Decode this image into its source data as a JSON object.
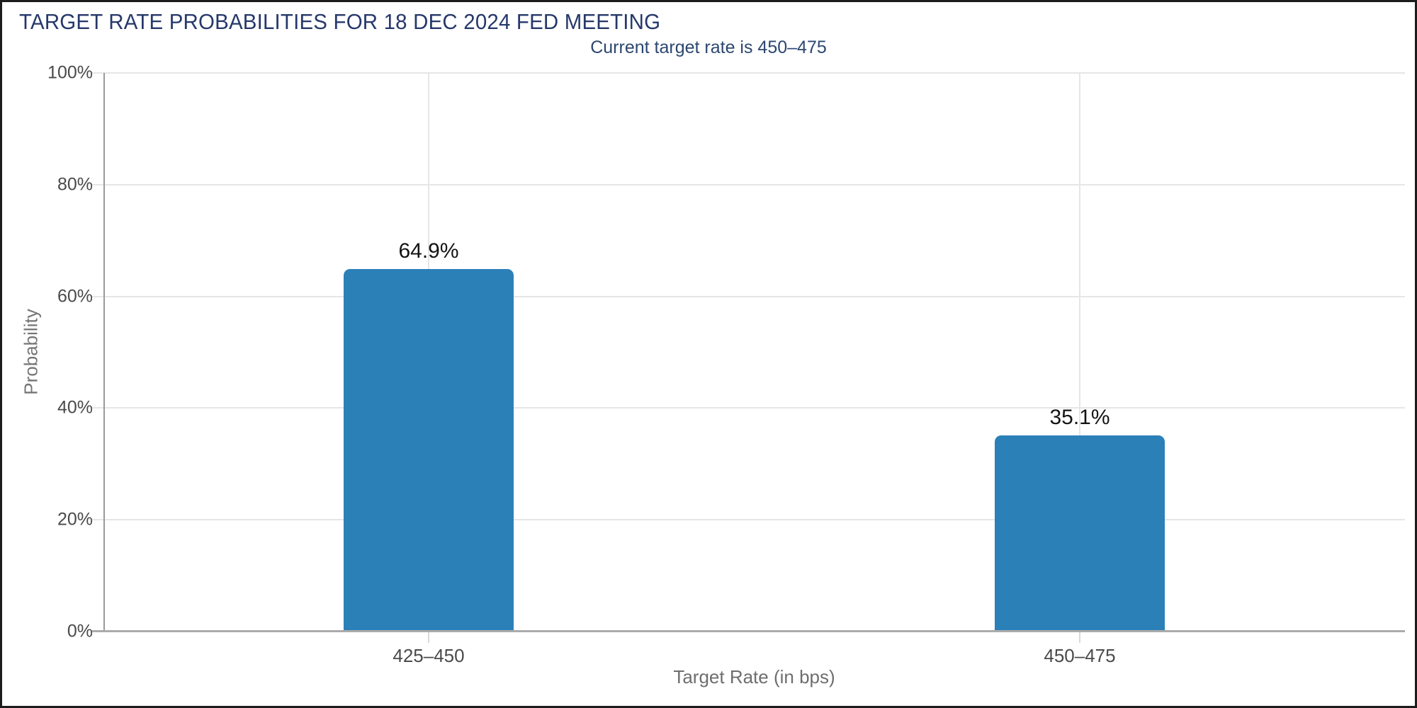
{
  "chart_data": {
    "type": "bar",
    "title": "TARGET RATE PROBABILITIES FOR 18 DEC 2024 FED MEETING",
    "subtitle": "Current target rate is 450–475",
    "categories": [
      "425–450",
      "450–475"
    ],
    "values": [
      64.9,
      35.1
    ],
    "value_labels": [
      "64.9%",
      "35.1%"
    ],
    "xlabel": "Target Rate (in bps)",
    "ylabel": "Probability",
    "ylim": [
      0,
      100
    ],
    "ytick_step": 20,
    "yticks": [
      "0%",
      "20%",
      "40%",
      "60%",
      "80%",
      "100%"
    ],
    "grid": true,
    "legend": "none",
    "bar_color": "#2b80b8"
  },
  "colors": {
    "title": "#26386b",
    "subtitle": "#2c4770",
    "bar": "#2b80b8",
    "gridline": "#e6e6e6",
    "axis_line": "#9a9a9a",
    "baseline": "#ababab",
    "tick_label": "#4a4a4a",
    "axis_title": "#6e6e6e",
    "data_label": "#141414",
    "page_border": "#1c1c1c"
  }
}
